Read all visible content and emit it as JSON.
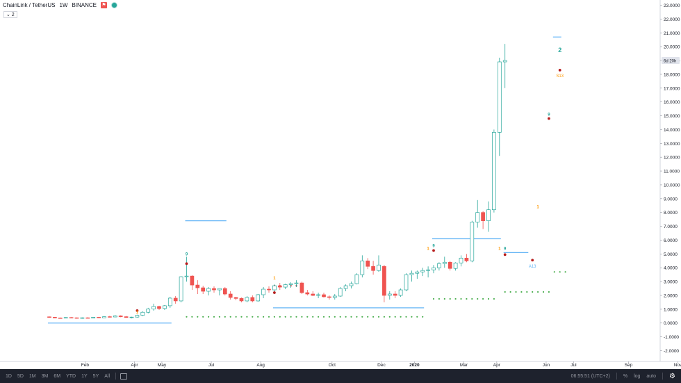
{
  "header": {
    "symbol": "ChainLink / TetherUS",
    "interval": "1W",
    "exchange": "BINANCE",
    "flag_icon": "flag-icon",
    "status_icon": "market-status-icon",
    "legend_toggle": "⌄ 2"
  },
  "price_tag": {
    "label": "6d 20h",
    "value": 19.0
  },
  "bottom": {
    "ranges": [
      "1D",
      "5D",
      "1M",
      "3M",
      "6M",
      "YTD",
      "1Y",
      "5Y",
      "All"
    ],
    "time": "06:55:51 (UTC+2)",
    "percent": "%",
    "log": "log",
    "auto": "auto",
    "colors": {
      "bg": "#1e222d"
    }
  },
  "chart_data": {
    "type": "candlestick",
    "ylim": [
      -2,
      23
    ],
    "y_ticks": [
      -2,
      -1,
      0,
      1,
      2,
      3,
      4,
      5,
      6,
      7,
      8,
      9,
      10,
      11,
      12,
      13,
      14,
      15,
      16,
      17,
      18,
      19,
      20,
      21,
      22,
      23
    ],
    "y_tick_labels": [
      "-2.0000",
      "-1.0000",
      "0.0000",
      "1.0000",
      "2.0000",
      "3.0000",
      "4.0000",
      "5.0000",
      "6.0000",
      "7.0000",
      "8.0000",
      "9.0000",
      "10.0000",
      "11.0000",
      "12.0000",
      "13.0000",
      "14.0000",
      "15.0000",
      "16.0000",
      "17.0000",
      "18.0000",
      "19.0000",
      "20.0000",
      "21.0000",
      "22.0000",
      "23.0000"
    ],
    "x_labels": [
      {
        "week": 6.5,
        "label": "Feb"
      },
      {
        "week": 15.5,
        "label": "Apr"
      },
      {
        "week": 20.5,
        "label": "May"
      },
      {
        "week": 29.5,
        "label": "Jul"
      },
      {
        "week": 38.5,
        "label": "Aug"
      },
      {
        "week": 51.5,
        "label": "Oct"
      },
      {
        "week": 60.5,
        "label": "Dec"
      },
      {
        "week": 66.5,
        "label": "2020"
      },
      {
        "week": 75.5,
        "label": "Mar"
      },
      {
        "week": 81.5,
        "label": "Apr"
      },
      {
        "week": 90.5,
        "label": "Jun"
      },
      {
        "week": 95.5,
        "label": "Jul"
      },
      {
        "week": 105.5,
        "label": "Sep"
      },
      {
        "week": 114.5,
        "label": "Nov"
      }
    ],
    "colors": {
      "up": "#26a69a",
      "up_fill": "#ffffff",
      "down": "#ef5350",
      "level": "#64b5f6",
      "dots": "#4caf50",
      "marker": "#b71c1c",
      "count_green": "#26a69a",
      "count_orange": "#ff9800"
    },
    "candles": [
      [
        0.45,
        0.48,
        0.38,
        0.42
      ],
      [
        0.42,
        0.44,
        0.35,
        0.37
      ],
      [
        0.37,
        0.4,
        0.33,
        0.36
      ],
      [
        0.36,
        0.42,
        0.34,
        0.4
      ],
      [
        0.4,
        0.43,
        0.35,
        0.38
      ],
      [
        0.38,
        0.4,
        0.32,
        0.34
      ],
      [
        0.34,
        0.4,
        0.32,
        0.38
      ],
      [
        0.38,
        0.42,
        0.34,
        0.36
      ],
      [
        0.36,
        0.44,
        0.34,
        0.42
      ],
      [
        0.42,
        0.45,
        0.36,
        0.38
      ],
      [
        0.38,
        0.48,
        0.36,
        0.46
      ],
      [
        0.46,
        0.52,
        0.4,
        0.44
      ],
      [
        0.44,
        0.58,
        0.42,
        0.52
      ],
      [
        0.52,
        0.56,
        0.42,
        0.46
      ],
      [
        0.46,
        0.5,
        0.38,
        0.4
      ],
      [
        0.4,
        0.45,
        0.34,
        0.43
      ],
      [
        0.43,
        0.6,
        0.4,
        0.56
      ],
      [
        0.56,
        0.85,
        0.5,
        0.78
      ],
      [
        0.78,
        1.1,
        0.7,
        1.02
      ],
      [
        1.02,
        1.4,
        0.9,
        1.2
      ],
      [
        1.2,
        1.25,
        0.95,
        1.05
      ],
      [
        1.05,
        1.3,
        0.95,
        1.25
      ],
      [
        1.25,
        1.9,
        1.1,
        1.8
      ],
      [
        1.8,
        1.95,
        1.4,
        1.6
      ],
      [
        1.6,
        3.4,
        1.5,
        3.35
      ],
      [
        3.35,
        4.8,
        3.0,
        3.4
      ],
      [
        3.4,
        3.45,
        2.4,
        2.75
      ],
      [
        2.75,
        3.1,
        2.1,
        2.55
      ],
      [
        2.55,
        2.7,
        2.1,
        2.3
      ],
      [
        2.3,
        2.6,
        2.0,
        2.5
      ],
      [
        2.5,
        2.65,
        2.2,
        2.4
      ],
      [
        2.4,
        2.5,
        2.0,
        2.5
      ],
      [
        2.5,
        2.6,
        2.0,
        2.1
      ],
      [
        2.1,
        2.3,
        1.7,
        1.85
      ],
      [
        1.85,
        1.9,
        1.65,
        1.78
      ],
      [
        1.78,
        1.85,
        1.5,
        1.6
      ],
      [
        1.6,
        1.95,
        1.5,
        1.85
      ],
      [
        1.85,
        2.0,
        1.5,
        1.6
      ],
      [
        1.6,
        2.1,
        1.55,
        2.05
      ],
      [
        2.05,
        2.6,
        1.8,
        2.45
      ],
      [
        2.45,
        2.65,
        2.2,
        2.4
      ],
      [
        2.4,
        2.8,
        2.1,
        2.7
      ],
      [
        2.7,
        2.9,
        2.4,
        2.6
      ],
      [
        2.6,
        2.85,
        2.45,
        2.78
      ],
      [
        2.78,
        2.95,
        2.55,
        2.85
      ],
      [
        2.85,
        3.1,
        2.6,
        2.9
      ],
      [
        2.9,
        3.0,
        2.1,
        2.2
      ],
      [
        2.2,
        2.4,
        2.0,
        2.1
      ],
      [
        2.1,
        2.3,
        1.95,
        2.0
      ],
      [
        2.0,
        2.2,
        1.8,
        2.05
      ],
      [
        2.05,
        2.2,
        1.85,
        1.9
      ],
      [
        1.9,
        2.0,
        1.7,
        1.85
      ],
      [
        1.85,
        2.1,
        1.7,
        1.95
      ],
      [
        1.95,
        2.6,
        1.9,
        2.5
      ],
      [
        2.5,
        2.8,
        2.3,
        2.7
      ],
      [
        2.7,
        3.0,
        2.5,
        2.85
      ],
      [
        2.85,
        3.6,
        2.8,
        3.5
      ],
      [
        3.5,
        4.9,
        3.3,
        4.5
      ],
      [
        4.5,
        4.7,
        3.9,
        4.1
      ],
      [
        4.1,
        4.5,
        3.5,
        3.8
      ],
      [
        3.8,
        4.9,
        3.7,
        4.2
      ],
      [
        4.1,
        4.2,
        1.5,
        2.0
      ],
      [
        2.0,
        2.3,
        1.7,
        2.1
      ],
      [
        2.1,
        2.3,
        1.8,
        2.0
      ],
      [
        2.0,
        2.5,
        1.9,
        2.4
      ],
      [
        2.4,
        3.6,
        2.3,
        3.5
      ],
      [
        3.5,
        3.8,
        3.0,
        3.6
      ],
      [
        3.6,
        3.8,
        3.2,
        3.7
      ],
      [
        3.7,
        4.0,
        3.4,
        3.8
      ],
      [
        3.8,
        4.1,
        3.3,
        3.85
      ],
      [
        3.85,
        4.2,
        3.6,
        4.0
      ],
      [
        4.0,
        4.4,
        3.8,
        4.3
      ],
      [
        4.3,
        4.8,
        4.0,
        4.4
      ],
      [
        4.4,
        4.5,
        3.8,
        3.95
      ],
      [
        3.95,
        4.4,
        3.8,
        4.35
      ],
      [
        4.35,
        4.9,
        4.1,
        4.7
      ],
      [
        4.7,
        5.0,
        4.4,
        4.5
      ],
      [
        4.5,
        7.4,
        4.4,
        7.3
      ],
      [
        7.3,
        8.9,
        6.9,
        8.0
      ],
      [
        8.0,
        8.1,
        6.8,
        7.4
      ],
      [
        7.4,
        8.8,
        6.6,
        8.2
      ],
      [
        8.2,
        14.0,
        8.0,
        13.8
      ],
      [
        13.8,
        19.2,
        12.1,
        18.9
      ],
      [
        18.9,
        20.2,
        17.0,
        19.0
      ]
    ],
    "counts": [
      {
        "week": 16,
        "text": "1",
        "color": "orange",
        "above": 0.7
      },
      {
        "week": 25,
        "text": "9",
        "color": "green",
        "above": 4.9
      },
      {
        "week": 41,
        "text": "1",
        "color": "orange",
        "above": 3.15
      },
      {
        "week": 69,
        "text": "1",
        "color": "orange",
        "above": 5.3
      },
      {
        "week": 70,
        "text": "9",
        "color": "green",
        "above": 5.5
      },
      {
        "week": 82,
        "text": "1",
        "color": "orange",
        "above": 5.3
      },
      {
        "week": 83,
        "text": "9",
        "color": "green",
        "above": 5.3
      },
      {
        "week": 89,
        "text": "1",
        "color": "orange",
        "above": 8.3
      },
      {
        "week": 91,
        "text": "9",
        "color": "green",
        "above": 15.0
      },
      {
        "week": 93,
        "text": "2",
        "color": "green",
        "above": 19.6,
        "big": true
      }
    ],
    "bottom_labels": [
      {
        "week": 88,
        "text": "A13",
        "color": "level",
        "at": 4.0
      },
      {
        "week": 93,
        "text": "S13",
        "color": "orange",
        "at": 17.8
      }
    ],
    "markers": [
      {
        "week": 16,
        "value": 0.9
      },
      {
        "week": 25,
        "value": 4.3
      },
      {
        "week": 41,
        "value": 2.2
      },
      {
        "week": 70,
        "value": 5.25
      },
      {
        "week": 83,
        "value": 4.95
      },
      {
        "week": 88,
        "value": 4.55
      },
      {
        "week": 91,
        "value": 14.8
      },
      {
        "week": 93,
        "value": 18.3
      }
    ],
    "levels": [
      {
        "from": 0,
        "to": 22,
        "value": 0.0
      },
      {
        "from": 25,
        "to": 32,
        "value": 7.4
      },
      {
        "from": 41,
        "to": 68,
        "value": 1.1
      },
      {
        "from": 70,
        "to": 82,
        "value": 6.1
      },
      {
        "from": 83,
        "to": 87,
        "value": 5.1
      },
      {
        "from": 92,
        "to": 93,
        "value": 20.7
      }
    ],
    "dot_rows": [
      {
        "from": 25,
        "to": 68,
        "value": 0.45
      },
      {
        "from": 70,
        "to": 81,
        "value": 1.75
      },
      {
        "from": 83,
        "to": 91,
        "value": 2.25
      },
      {
        "from": 92,
        "to": 94,
        "value": 3.7
      },
      {
        "from": 41,
        "to": 46,
        "value": 2.7,
        "color": "marker"
      }
    ]
  }
}
